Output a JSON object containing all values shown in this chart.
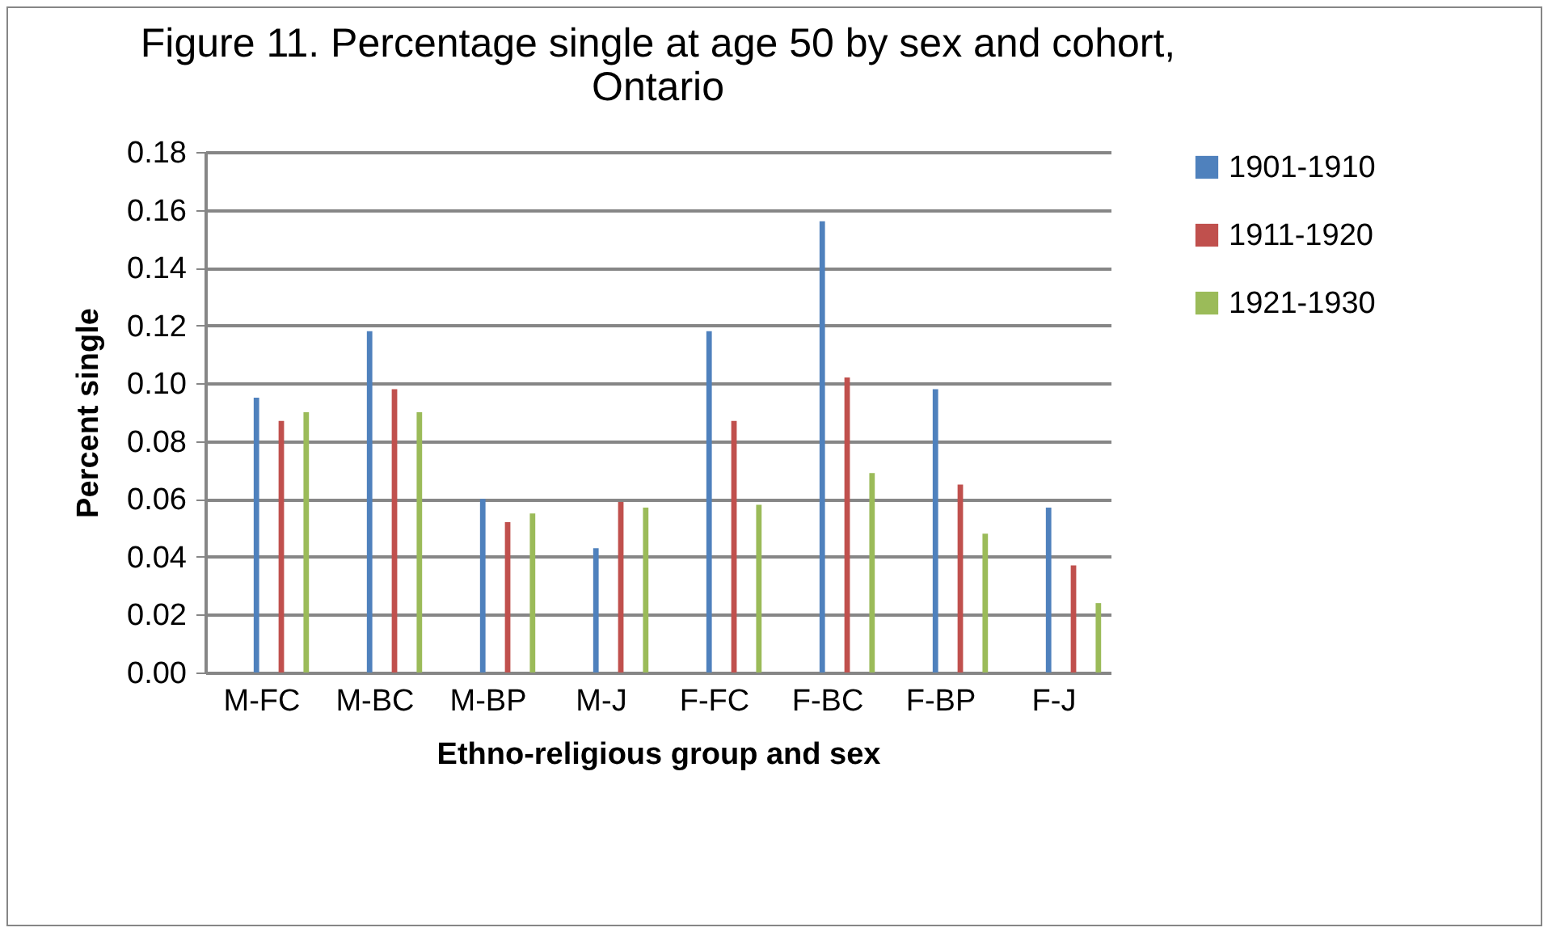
{
  "chart_data": {
    "type": "bar",
    "title": [
      "Figure 11. Percentage single at age 50 by sex and cohort,",
      "Ontario"
    ],
    "xlabel": "Ethno-religious group and sex",
    "ylabel": "Percent single",
    "categories": [
      "M-FC",
      "M-BC",
      "M-BP",
      "M-J",
      "F-FC",
      "F-BC",
      "F-BP",
      "F-J"
    ],
    "series": [
      {
        "name": "1901-1910",
        "color": "#4f81bd",
        "values": [
          0.095,
          0.118,
          0.06,
          0.043,
          0.118,
          0.156,
          0.098,
          0.057
        ]
      },
      {
        "name": "1911-1920",
        "color": "#c0504d",
        "values": [
          0.087,
          0.098,
          0.052,
          0.059,
          0.087,
          0.102,
          0.065,
          0.037
        ]
      },
      {
        "name": "1921-1930",
        "color": "#9bbb59",
        "values": [
          0.09,
          0.09,
          0.055,
          0.057,
          0.058,
          0.069,
          0.048,
          0.024
        ]
      }
    ],
    "ylim": [
      0,
      0.18
    ],
    "yticks": [
      {
        "value": 0,
        "label": "0.00"
      },
      {
        "value": 0.02,
        "label": "0.02"
      },
      {
        "value": 0.04,
        "label": "0.04"
      },
      {
        "value": 0.06,
        "label": "0.06"
      },
      {
        "value": 0.08,
        "label": "0.08"
      },
      {
        "value": 0.1,
        "label": "0.10"
      },
      {
        "value": 0.12,
        "label": "0.12"
      },
      {
        "value": 0.14,
        "label": "0.14"
      },
      {
        "value": 0.16,
        "label": "0.16"
      },
      {
        "value": 0.18,
        "label": "0.18"
      }
    ],
    "grid": "y",
    "legend": "right"
  }
}
